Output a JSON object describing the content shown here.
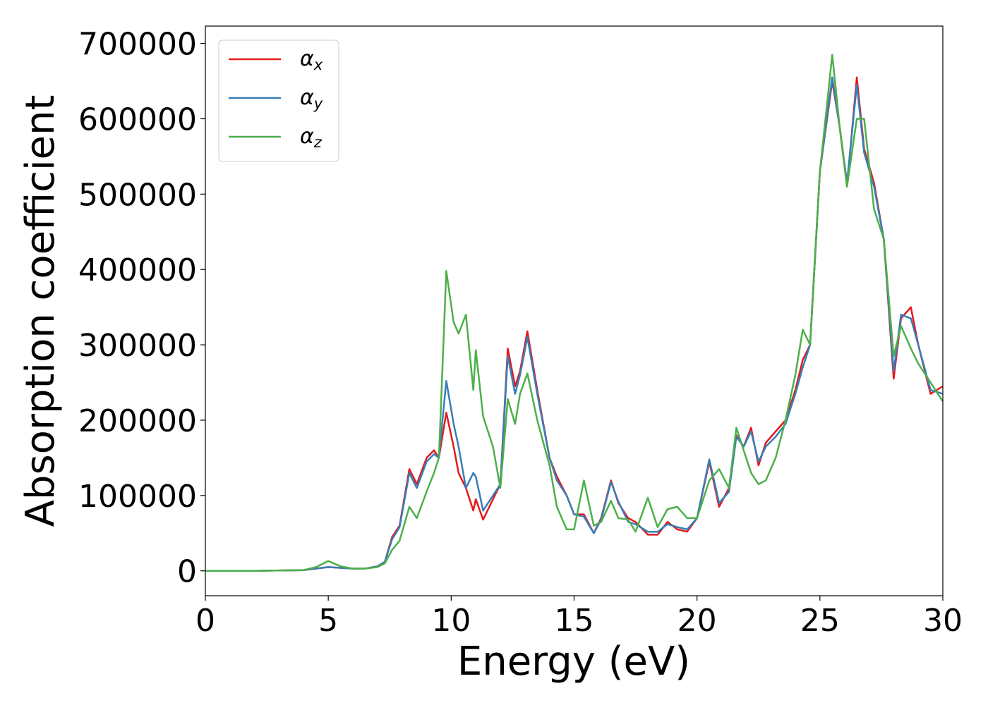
{
  "chart_data": {
    "type": "line",
    "xlabel": "Energy (eV)",
    "ylabel": "Absorption coefficient",
    "x": [
      0,
      2,
      4,
      4.5,
      5,
      5.5,
      6,
      6.5,
      7,
      7.3,
      7.6,
      7.9,
      8.3,
      8.6,
      9.0,
      9.3,
      9.5,
      9.8,
      10.1,
      10.3,
      10.6,
      10.9,
      11.0,
      11.3,
      11.7,
      12.0,
      12.3,
      12.6,
      12.8,
      13.1,
      13.5,
      14.0,
      14.3,
      14.7,
      15.0,
      15.4,
      15.8,
      16.1,
      16.5,
      16.8,
      17.2,
      17.5,
      18.0,
      18.4,
      18.8,
      19.2,
      19.6,
      20.0,
      20.5,
      20.9,
      21.3,
      21.6,
      21.9,
      22.2,
      22.5,
      22.8,
      23.2,
      23.6,
      24.0,
      24.3,
      24.6,
      25.0,
      25.5,
      25.8,
      26.1,
      26.5,
      26.8,
      27.2,
      27.6,
      28.0,
      28.3,
      28.7,
      29.0,
      29.5,
      30.0
    ],
    "series": [
      {
        "name": "αx",
        "color": "#e41a1c",
        "values": [
          0,
          0,
          1000,
          3000,
          5000,
          4000,
          3000,
          3000,
          6000,
          12000,
          45000,
          60000,
          135000,
          115000,
          150000,
          160000,
          150000,
          210000,
          165000,
          130000,
          110000,
          80000,
          95000,
          68000,
          95000,
          115000,
          295000,
          245000,
          265000,
          318000,
          240000,
          150000,
          125000,
          100000,
          75000,
          75000,
          50000,
          70000,
          120000,
          90000,
          70000,
          65000,
          48000,
          48000,
          65000,
          55000,
          52000,
          70000,
          145000,
          85000,
          110000,
          180000,
          165000,
          190000,
          140000,
          170000,
          185000,
          200000,
          240000,
          280000,
          300000,
          530000,
          650000,
          590000,
          510000,
          655000,
          560000,
          515000,
          440000,
          255000,
          335000,
          350000,
          300000,
          235000,
          245000
        ]
      },
      {
        "name": "αy",
        "color": "#377eb8",
        "values": [
          0,
          0,
          1000,
          3000,
          5000,
          4000,
          3000,
          3000,
          6000,
          12000,
          42000,
          58000,
          130000,
          110000,
          145000,
          155000,
          150000,
          252000,
          195000,
          165000,
          110000,
          130000,
          125000,
          80000,
          100000,
          115000,
          285000,
          235000,
          260000,
          310000,
          235000,
          150000,
          120000,
          100000,
          75000,
          72000,
          50000,
          68000,
          118000,
          92000,
          65000,
          62000,
          52000,
          52000,
          62000,
          58000,
          55000,
          70000,
          148000,
          90000,
          105000,
          178000,
          165000,
          185000,
          145000,
          165000,
          178000,
          195000,
          235000,
          270000,
          300000,
          530000,
          655000,
          590000,
          515000,
          645000,
          555000,
          510000,
          440000,
          265000,
          340000,
          335000,
          300000,
          240000,
          235000
        ]
      },
      {
        "name": "αz",
        "color": "#4daf4a",
        "values": [
          0,
          0,
          1000,
          5000,
          13000,
          6000,
          3000,
          3000,
          5000,
          10000,
          28000,
          40000,
          85000,
          70000,
          105000,
          130000,
          150000,
          398000,
          330000,
          315000,
          340000,
          240000,
          293000,
          205000,
          165000,
          110000,
          228000,
          195000,
          235000,
          262000,
          200000,
          140000,
          85000,
          55000,
          55000,
          120000,
          60000,
          65000,
          93000,
          70000,
          68000,
          52000,
          97000,
          58000,
          82000,
          85000,
          70000,
          70000,
          120000,
          135000,
          110000,
          190000,
          160000,
          130000,
          115000,
          120000,
          150000,
          200000,
          260000,
          320000,
          300000,
          530000,
          685000,
          590000,
          510000,
          600000,
          600000,
          480000,
          440000,
          285000,
          325000,
          295000,
          275000,
          250000,
          225000
        ]
      }
    ],
    "xlim": [
      0,
      30
    ],
    "xticks": [
      0,
      5,
      10,
      15,
      20,
      25,
      30
    ],
    "ylim": [
      -33000,
      723000
    ],
    "yticks": [
      0,
      100000,
      200000,
      300000,
      400000,
      500000,
      600000,
      700000
    ],
    "grid": false,
    "legend": "upper left"
  }
}
